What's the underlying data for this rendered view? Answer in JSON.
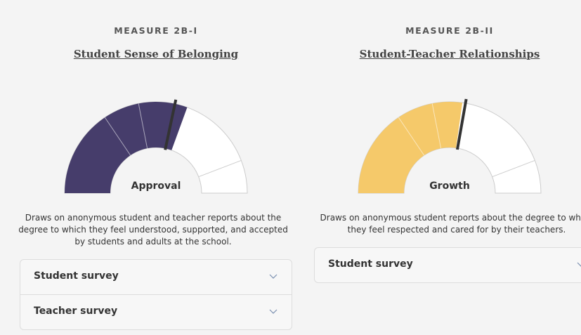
{
  "panels": [
    {
      "measure": "MEASURE 2B-I",
      "title": "Student Sense of Belonging",
      "gauge_label": "Approval",
      "description": "Draws on anonymous student and teacher reports about the degree to which they feel understood, supported, and accepted by students and adults at the school.",
      "sections": [
        "Student survey",
        "Teacher survey"
      ]
    },
    {
      "measure": "MEASURE 2B-II",
      "title": "Student-Teacher Relationships",
      "gauge_label": "Growth",
      "description": "Draws on anonymous student reports about the degree to which they feel respected and cared for by their teachers.",
      "sections": [
        "Student survey"
      ]
    }
  ]
}
